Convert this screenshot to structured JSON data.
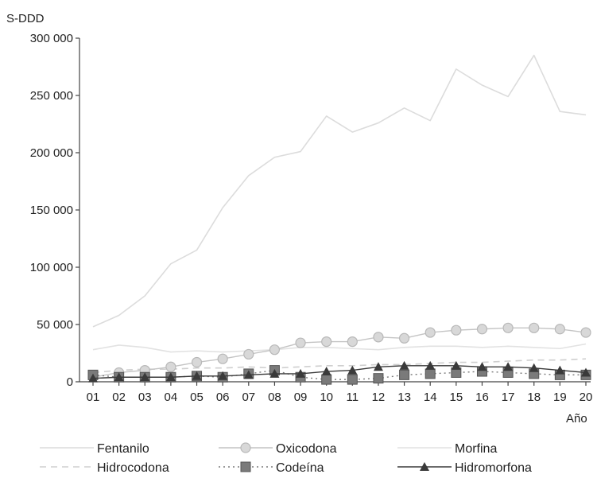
{
  "chart_data": {
    "type": "line",
    "ylabel": "S-DDD",
    "xlabel": "Año",
    "ylim": [
      0,
      300000
    ],
    "yticks": [
      0,
      50000,
      100000,
      150000,
      200000,
      250000,
      300000
    ],
    "ytick_labels": [
      "0",
      "50 000",
      "100 000",
      "150 000",
      "200 000",
      "250 000",
      "300 000"
    ],
    "categories": [
      "01",
      "02",
      "03",
      "04",
      "05",
      "06",
      "07",
      "08",
      "09",
      "10",
      "11",
      "12",
      "13",
      "14",
      "15",
      "16",
      "17",
      "18",
      "19",
      "20"
    ],
    "grid": false,
    "legend_position": "bottom",
    "series": [
      {
        "name": "Fentanilo",
        "color": "#dcdcdc",
        "marker": "line",
        "dash": "",
        "values": [
          48000,
          58000,
          75000,
          103000,
          115000,
          152000,
          180000,
          196000,
          201000,
          232000,
          218000,
          226000,
          239000,
          228000,
          273000,
          259000,
          249000,
          285000,
          236000,
          233000
        ]
      },
      {
        "name": "Oxicodona",
        "color": "#c4c4c4",
        "marker": "circle",
        "dash": "",
        "values": [
          4000,
          8000,
          10000,
          13000,
          17000,
          20000,
          24000,
          28000,
          34000,
          35000,
          35000,
          39000,
          38000,
          43000,
          45000,
          46000,
          47000,
          47000,
          46000,
          43000
        ]
      },
      {
        "name": "Morfina",
        "color": "#e2e2e2",
        "marker": "line",
        "dash": "",
        "values": [
          28000,
          32000,
          30000,
          26000,
          27000,
          26000,
          27000,
          28000,
          30000,
          30000,
          29000,
          28000,
          30000,
          31000,
          31000,
          30000,
          31000,
          30000,
          29000,
          33000
        ]
      },
      {
        "name": "Hidrocodona",
        "color": "#cfcfcf",
        "marker": "line",
        "dash": "8,6",
        "values": [
          8000,
          10000,
          11000,
          11000,
          12000,
          12000,
          13000,
          12000,
          13000,
          14000,
          14000,
          15000,
          15000,
          16000,
          17000,
          17000,
          18000,
          19000,
          19000,
          20000
        ]
      },
      {
        "name": "Codeína",
        "color": "#7a7a7a",
        "marker": "square",
        "dash": "2,4",
        "values": [
          6000,
          4000,
          4000,
          4000,
          5000,
          4000,
          7000,
          10000,
          4000,
          2000,
          2000,
          3000,
          6000,
          7000,
          8000,
          9000,
          8000,
          7000,
          6000,
          6000
        ]
      },
      {
        "name": "Hidromorfona",
        "color": "#3a3a3a",
        "marker": "triangle",
        "dash": "",
        "values": [
          3000,
          4000,
          4000,
          4000,
          5000,
          5000,
          6000,
          7000,
          7000,
          9000,
          10000,
          13000,
          14000,
          14000,
          14000,
          13000,
          13000,
          12000,
          10000,
          8000
        ]
      }
    ]
  }
}
